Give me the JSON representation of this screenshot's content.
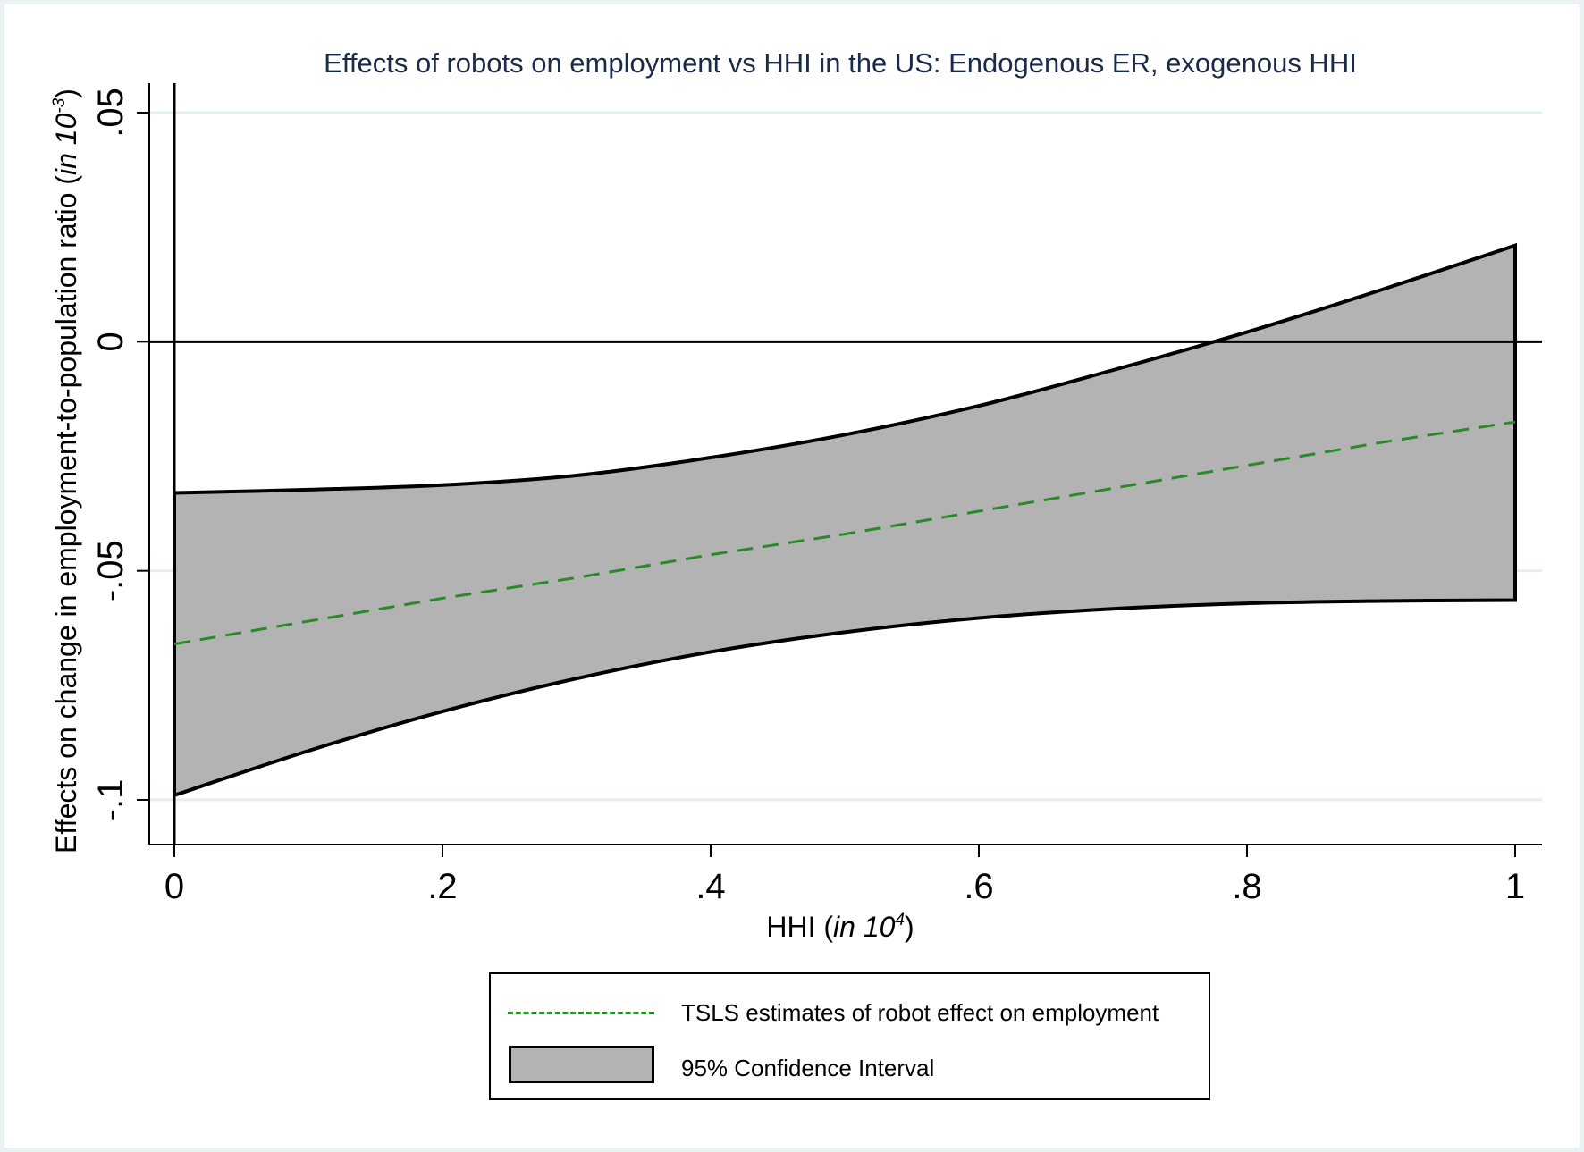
{
  "chart_data": {
    "type": "area",
    "title": "Effects of robots on employment vs HHI in the US: Endogenous ER, exogenous HHI",
    "xlabel": "HHI (in 10^4)",
    "xlabel_parts": {
      "main": "HHI (",
      "italic": "in 10",
      "sup": "4",
      "close": ")"
    },
    "ylabel": "Effects on change in employment-to-population ratio (in 10^-3)",
    "ylabel_parts": {
      "main": "Effects on change in employment-to-population ratio (",
      "italic": "in 10",
      "sup": "-3",
      "close": ")"
    },
    "xlim": [
      0,
      1
    ],
    "ylim": [
      -0.1,
      0.05
    ],
    "x_ticks": [
      0,
      0.2,
      0.4,
      0.6,
      0.8,
      1
    ],
    "x_tick_labels": [
      "0",
      ".2",
      ".4",
      ".6",
      ".8",
      "1"
    ],
    "y_ticks": [
      -0.1,
      -0.05,
      0,
      0.05
    ],
    "y_tick_labels": [
      "-.1",
      "-.05",
      "0",
      ".05"
    ],
    "grid": true,
    "reference_lines": {
      "x": 0,
      "y": 0
    },
    "x": [
      0,
      0.1,
      0.2,
      0.3,
      0.4,
      0.5,
      0.6,
      0.7,
      0.8,
      0.9,
      1.0
    ],
    "series": [
      {
        "name": "TSLS estimates of robot effect on employment",
        "style": "dashed-line",
        "color": "#2a8a2a",
        "values": [
          -0.066,
          -0.061,
          -0.056,
          -0.0515,
          -0.0465,
          -0.042,
          -0.037,
          -0.032,
          -0.027,
          -0.022,
          -0.0175
        ]
      },
      {
        "name": "95% Confidence Interval",
        "style": "band",
        "color": "#b3b3b3",
        "upper": [
          -0.033,
          -0.0323,
          -0.0313,
          -0.0292,
          -0.0253,
          -0.0203,
          -0.014,
          -0.0062,
          0.0021,
          0.0113,
          0.021
        ],
        "lower": [
          -0.099,
          -0.0893,
          -0.0807,
          -0.0735,
          -0.0677,
          -0.0634,
          -0.0603,
          -0.0583,
          -0.0571,
          -0.0566,
          -0.0564
        ]
      }
    ],
    "legend": {
      "position": "bottom",
      "entries": [
        {
          "label": "TSLS estimates of robot effect on employment",
          "symbol": "dashed-line"
        },
        {
          "label": "95% Confidence Interval",
          "symbol": "filled-box"
        }
      ]
    },
    "colors": {
      "title": "#1a2b4a",
      "band": "#b3b3b3",
      "estimate": "#2a8a2a",
      "grid": "#e3eeee",
      "background": "#eaf2f3"
    }
  }
}
